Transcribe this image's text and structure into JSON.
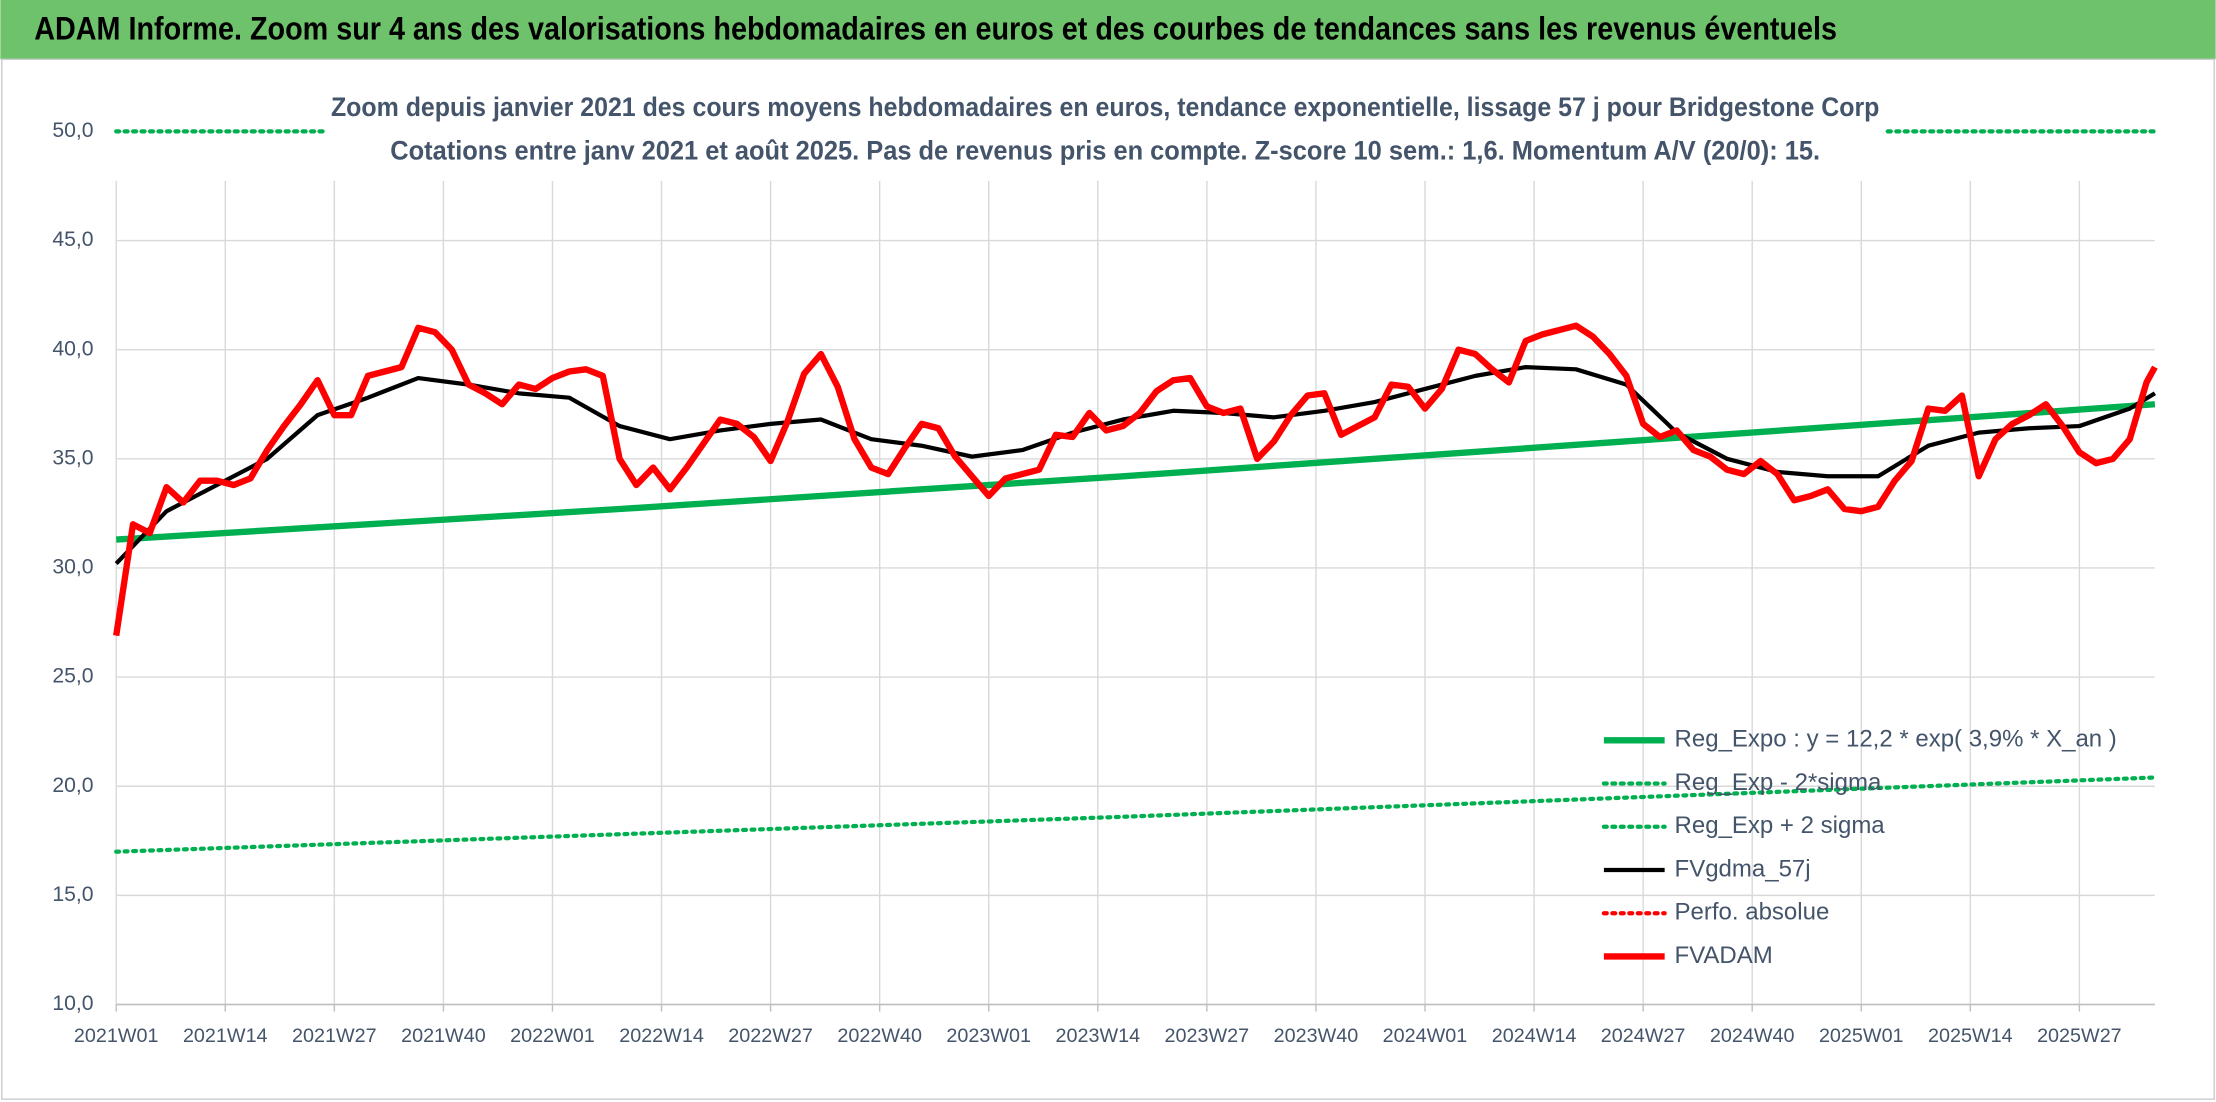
{
  "chart_data": {
    "type": "line",
    "title": "ADAM Informe. Zoom sur 4 ans des valorisations hebdomadaires en euros et des courbes de tendances sans les revenus éventuels",
    "subtitle": [
      "Zoom depuis janvier 2021 des cours moyens hebdomadaires en euros, tendance exponentielle, lissage 57 j pour Bridgestone Corp",
      "Cotations entre janv 2021 et août 2025. Pas de revenus pris en compte. Z-score 10 sem.: 1,6. Momentum A/V (20/0): 15."
    ],
    "xlim": [
      0,
      243
    ],
    "xticks": [
      {
        "value": 0,
        "label": "2021W01"
      },
      {
        "value": 13,
        "label": "2021W14"
      },
      {
        "value": 26,
        "label": "2021W27"
      },
      {
        "value": 39,
        "label": "2021W40"
      },
      {
        "value": 52,
        "label": "2022W01"
      },
      {
        "value": 65,
        "label": "2022W14"
      },
      {
        "value": 78,
        "label": "2022W27"
      },
      {
        "value": 91,
        "label": "2022W40"
      },
      {
        "value": 104,
        "label": "2023W01"
      },
      {
        "value": 117,
        "label": "2023W14"
      },
      {
        "value": 130,
        "label": "2023W27"
      },
      {
        "value": 143,
        "label": "2023W40"
      },
      {
        "value": 156,
        "label": "2024W01"
      },
      {
        "value": 169,
        "label": "2024W14"
      },
      {
        "value": 182,
        "label": "2024W27"
      },
      {
        "value": 195,
        "label": "2024W40"
      },
      {
        "value": 208,
        "label": "2025W01"
      },
      {
        "value": 221,
        "label": "2025W14"
      },
      {
        "value": 234,
        "label": "2025W27"
      }
    ],
    "ylim": [
      10,
      50
    ],
    "yticks": [
      {
        "value": 10,
        "label": "10,0"
      },
      {
        "value": 15,
        "label": "15,0"
      },
      {
        "value": 20,
        "label": "20,0"
      },
      {
        "value": 25,
        "label": "25,0"
      },
      {
        "value": 30,
        "label": "30,0"
      },
      {
        "value": 35,
        "label": "35,0"
      },
      {
        "value": 40,
        "label": "40,0"
      },
      {
        "value": 45,
        "label": "45,0"
      },
      {
        "value": 50,
        "label": "50,0"
      }
    ],
    "grid": true,
    "legend": "lower right",
    "series": [
      {
        "name": "Reg_Expo : y = 12,2 * exp( 3,9% *  X_an )",
        "color": "#00b050",
        "style": "thick",
        "x": [
          0,
          60,
          120,
          180,
          243
        ],
        "values": [
          31.3,
          32.7,
          34.2,
          35.8,
          37.5
        ]
      },
      {
        "name": "Reg_Exp - 2*sigma",
        "color": "#00b050",
        "style": "dotted",
        "x": [
          0,
          120,
          243
        ],
        "values": [
          17,
          18.6,
          20.4
        ]
      },
      {
        "name": "Reg_Exp + 2 sigma",
        "color": "#00b050",
        "style": "dotted",
        "x": [
          0,
          243
        ],
        "values": [
          50,
          50
        ]
      },
      {
        "name": "FVgdma_57j",
        "color": "#000000",
        "style": "solid",
        "x": [
          0,
          6,
          12,
          18,
          24,
          30,
          36,
          42,
          48,
          54,
          60,
          66,
          72,
          78,
          84,
          90,
          96,
          102,
          108,
          114,
          120,
          126,
          132,
          138,
          144,
          150,
          156,
          162,
          168,
          174,
          180,
          186,
          192,
          198,
          204,
          210,
          216,
          222,
          228,
          234,
          240,
          243
        ],
        "values": [
          30.2,
          32.6,
          33.8,
          35,
          37,
          37.8,
          38.7,
          38.4,
          38,
          37.8,
          36.5,
          35.9,
          36.3,
          36.6,
          36.8,
          35.9,
          35.6,
          35.1,
          35.4,
          36.2,
          36.8,
          37.2,
          37.1,
          36.9,
          37.2,
          37.6,
          38.2,
          38.8,
          39.2,
          39.1,
          38.4,
          36.2,
          35,
          34.4,
          34.2,
          34.2,
          35.6,
          36.2,
          36.4,
          36.5,
          37.3,
          38
        ]
      },
      {
        "name": "Perfo. absolue",
        "color": "#ff0000",
        "style": "dotted",
        "x": [],
        "values": []
      },
      {
        "name": "FVADAM",
        "color": "#ff0000",
        "style": "thick",
        "x": [
          0,
          2,
          4,
          6,
          8,
          10,
          12,
          14,
          16,
          18,
          20,
          22,
          24,
          26,
          28,
          30,
          32,
          34,
          36,
          38,
          40,
          42,
          44,
          46,
          48,
          50,
          52,
          54,
          56,
          58,
          60,
          62,
          64,
          66,
          68,
          70,
          72,
          74,
          76,
          78,
          80,
          82,
          84,
          86,
          88,
          90,
          92,
          94,
          96,
          98,
          100,
          102,
          104,
          106,
          108,
          110,
          112,
          114,
          116,
          118,
          120,
          122,
          124,
          126,
          128,
          130,
          132,
          134,
          136,
          138,
          140,
          142,
          144,
          146,
          148,
          150,
          152,
          154,
          156,
          158,
          160,
          162,
          164,
          166,
          168,
          170,
          172,
          174,
          176,
          178,
          180,
          182,
          184,
          186,
          188,
          190,
          192,
          194,
          196,
          198,
          200,
          202,
          204,
          206,
          208,
          210,
          212,
          214,
          216,
          218,
          220,
          222,
          224,
          226,
          228,
          230,
          232,
          234,
          236,
          238,
          240,
          242,
          243
        ],
        "values": [
          26.9,
          32,
          31.6,
          33.7,
          33,
          34,
          34,
          33.8,
          34.1,
          35.4,
          36.5,
          37.5,
          38.6,
          37,
          37,
          38.8,
          39,
          39.2,
          41,
          40.8,
          40,
          38.4,
          38,
          37.5,
          38.4,
          38.2,
          38.7,
          39,
          39.1,
          38.8,
          35,
          33.8,
          34.6,
          33.6,
          34.6,
          35.7,
          36.8,
          36.6,
          36,
          34.9,
          36.7,
          38.9,
          39.8,
          38.3,
          35.9,
          34.6,
          34.3,
          35.5,
          36.6,
          36.4,
          35.1,
          34.2,
          33.3,
          34.1,
          34.3,
          34.5,
          36.1,
          36,
          37.1,
          36.3,
          36.5,
          37.1,
          38.1,
          38.6,
          38.7,
          37.4,
          37.1,
          37.3,
          35,
          35.8,
          37,
          37.9,
          38,
          36.1,
          36.5,
          36.9,
          38.4,
          38.3,
          37.3,
          38.2,
          40,
          39.8,
          39.1,
          38.5,
          40.4,
          40.7,
          40.9,
          41.1,
          40.6,
          39.8,
          38.8,
          36.6,
          36,
          36.3,
          35.4,
          35.1,
          34.5,
          34.3,
          34.9,
          34.3,
          33.1,
          33.3,
          33.6,
          32.7,
          32.6,
          32.8,
          34,
          34.9,
          37.3,
          37.2,
          37.9,
          34.2,
          35.9,
          36.6,
          37,
          37.5,
          36.5,
          35.3,
          34.8,
          35,
          35.9,
          38.5,
          39.2
        ]
      }
    ]
  }
}
